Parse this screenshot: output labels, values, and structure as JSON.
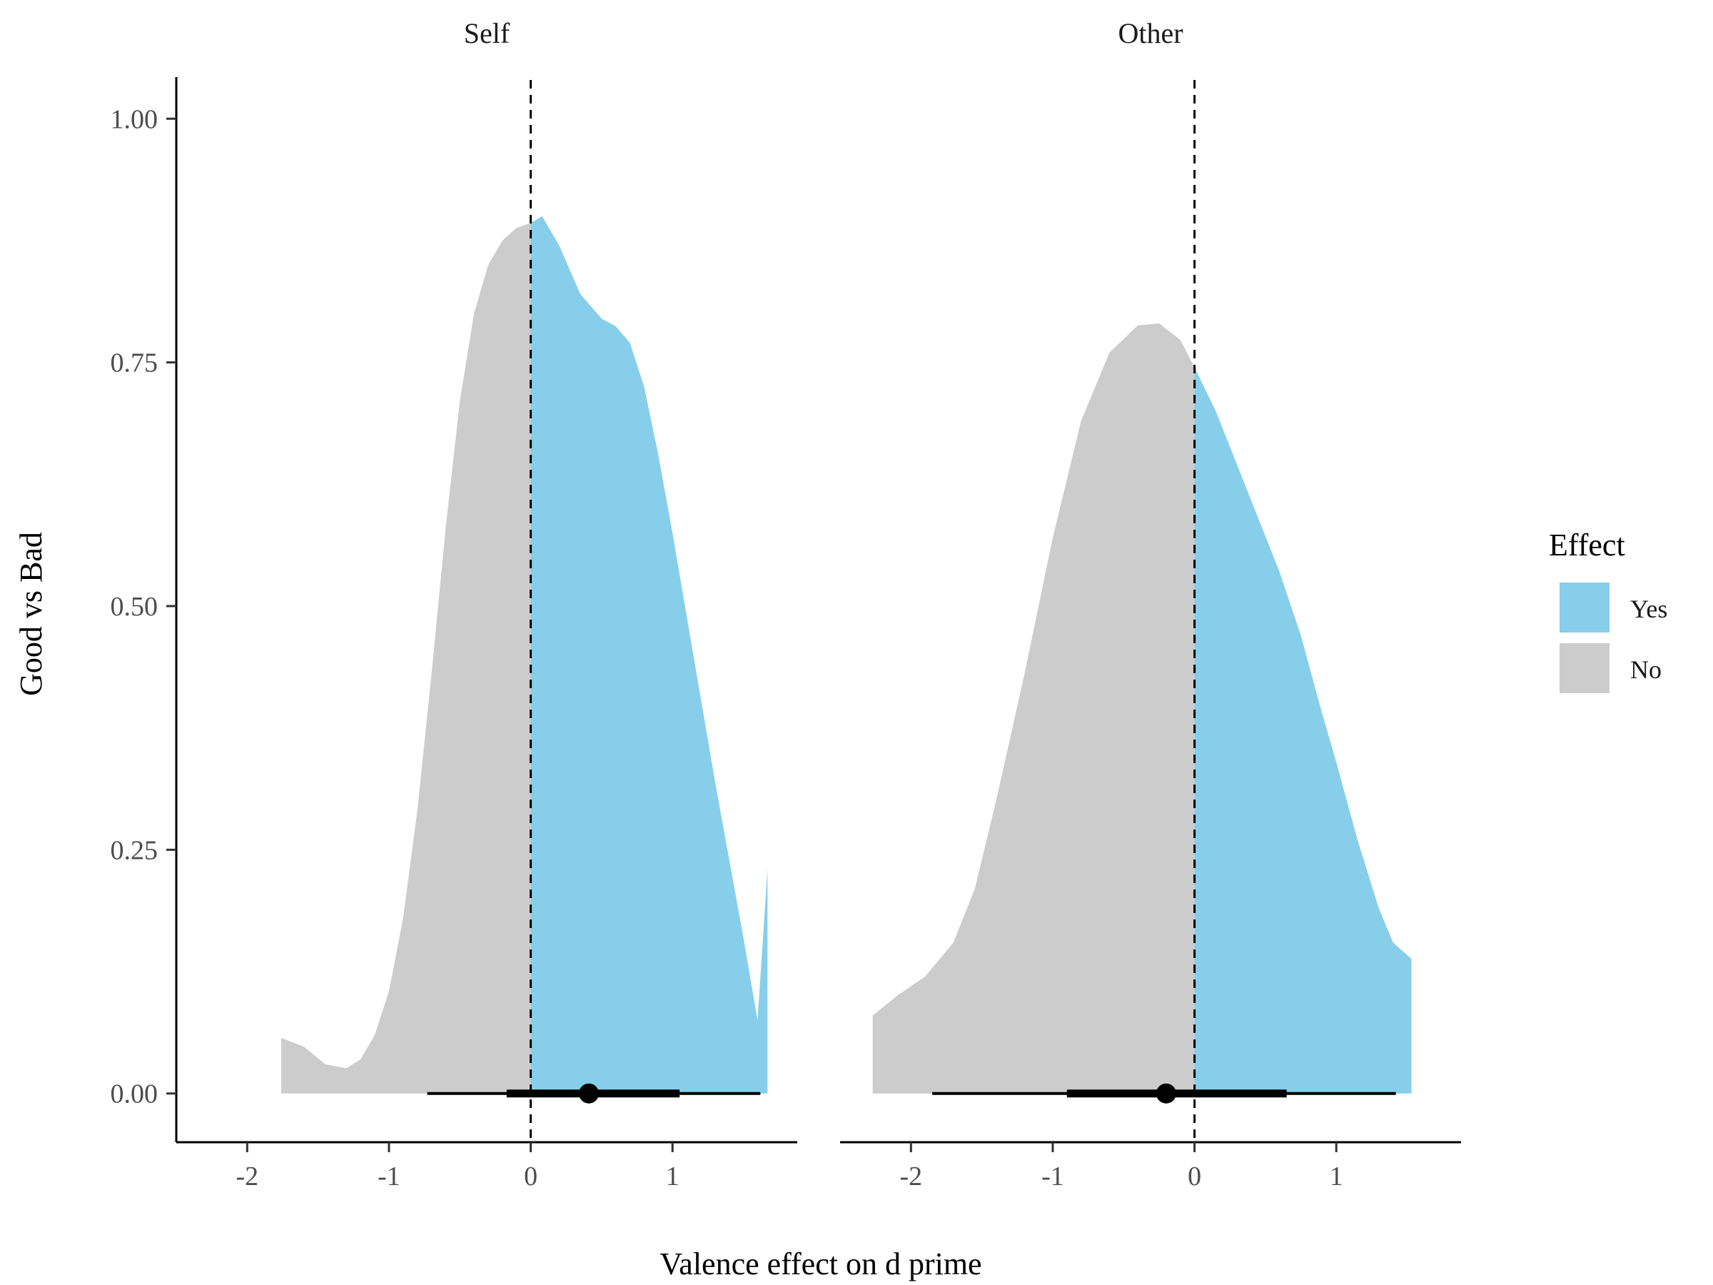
{
  "chart_data": {
    "type": "area",
    "xlabel": "Valence effect on d prime",
    "ylabel": "Good vs Bad",
    "xlim": [
      -2.5,
      1.88
    ],
    "ylim": [
      -0.05,
      1.05
    ],
    "x_ticks": [
      -2,
      -1,
      0,
      1
    ],
    "x_tick_labels": [
      "-2",
      "-1",
      "0",
      "1"
    ],
    "y_ticks": [
      0,
      0.25,
      0.5,
      0.75,
      1.0
    ],
    "y_tick_labels": [
      "0.00",
      "0.25",
      "0.50",
      "0.75",
      "1.00"
    ],
    "reference_line_x": 0,
    "legend": {
      "title": "Effect",
      "position": "right",
      "entries": [
        {
          "label": "Yes",
          "color": "#87CEEB"
        },
        {
          "label": "No",
          "color": "#CCCCCC"
        }
      ]
    },
    "panels": [
      {
        "label": "Self",
        "density": [
          [
            -1.76,
            0.057
          ],
          [
            -1.6,
            0.048
          ],
          [
            -1.45,
            0.03
          ],
          [
            -1.3,
            0.026
          ],
          [
            -1.2,
            0.035
          ],
          [
            -1.1,
            0.06
          ],
          [
            -1.0,
            0.105
          ],
          [
            -0.9,
            0.18
          ],
          [
            -0.8,
            0.29
          ],
          [
            -0.7,
            0.43
          ],
          [
            -0.6,
            0.58
          ],
          [
            -0.5,
            0.71
          ],
          [
            -0.4,
            0.8
          ],
          [
            -0.3,
            0.85
          ],
          [
            -0.2,
            0.875
          ],
          [
            -0.1,
            0.888
          ],
          [
            0.0,
            0.893
          ],
          [
            0.08,
            0.9
          ],
          [
            0.2,
            0.87
          ],
          [
            0.35,
            0.82
          ],
          [
            0.5,
            0.795
          ],
          [
            0.6,
            0.787
          ],
          [
            0.7,
            0.77
          ],
          [
            0.8,
            0.725
          ],
          [
            0.9,
            0.655
          ],
          [
            1.0,
            0.575
          ],
          [
            1.1,
            0.49
          ],
          [
            1.2,
            0.405
          ],
          [
            1.3,
            0.32
          ],
          [
            1.4,
            0.24
          ],
          [
            1.5,
            0.16
          ],
          [
            1.6,
            0.075
          ],
          [
            1.67,
            0.23
          ]
        ],
        "summary": {
          "point": 0.41,
          "inner": [
            -0.17,
            1.05
          ],
          "outer": [
            -0.73,
            1.62
          ]
        }
      },
      {
        "label": "Other",
        "density": [
          [
            -2.27,
            0.08
          ],
          [
            -2.1,
            0.1
          ],
          [
            -1.9,
            0.12
          ],
          [
            -1.7,
            0.155
          ],
          [
            -1.55,
            0.21
          ],
          [
            -1.4,
            0.3
          ],
          [
            -1.2,
            0.43
          ],
          [
            -1.0,
            0.57
          ],
          [
            -0.8,
            0.69
          ],
          [
            -0.6,
            0.76
          ],
          [
            -0.4,
            0.788
          ],
          [
            -0.25,
            0.79
          ],
          [
            -0.1,
            0.773
          ],
          [
            0.0,
            0.745
          ],
          [
            0.15,
            0.7
          ],
          [
            0.3,
            0.645
          ],
          [
            0.45,
            0.59
          ],
          [
            0.6,
            0.535
          ],
          [
            0.75,
            0.47
          ],
          [
            0.9,
            0.39
          ],
          [
            1.0,
            0.34
          ],
          [
            1.15,
            0.26
          ],
          [
            1.3,
            0.19
          ],
          [
            1.4,
            0.155
          ],
          [
            1.53,
            0.138
          ]
        ],
        "summary": {
          "point": -0.2,
          "inner": [
            -0.9,
            0.65
          ],
          "outer": [
            -1.85,
            1.42
          ]
        }
      }
    ]
  }
}
